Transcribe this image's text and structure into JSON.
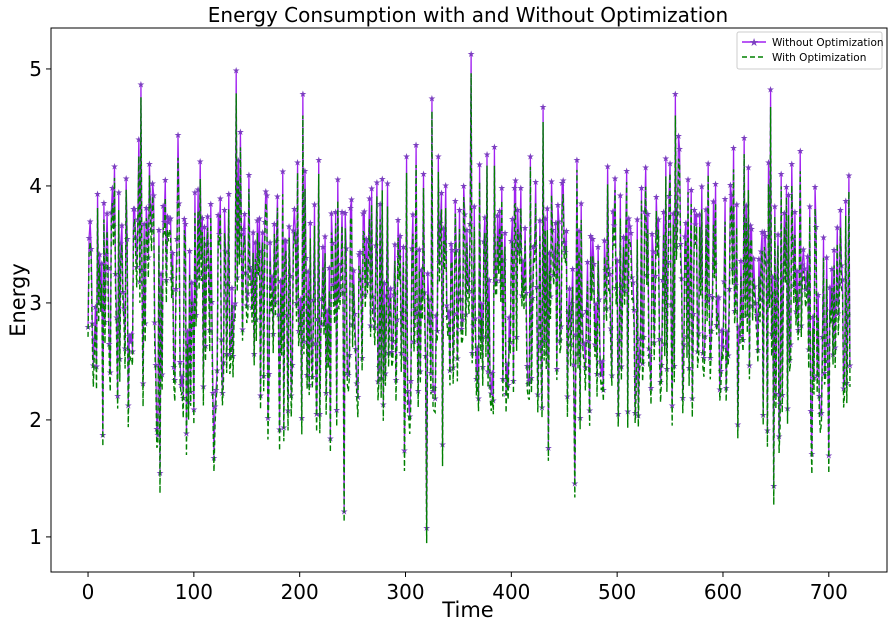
{
  "chart_data": {
    "type": "line",
    "title": "Energy Consumption with and Without Optimization",
    "xlabel": "Time",
    "ylabel": "Energy",
    "xlim": [
      -35,
      755
    ],
    "ylim": [
      0.7,
      5.35
    ],
    "xticks": [
      0,
      100,
      200,
      300,
      400,
      500,
      600,
      700
    ],
    "yticks": [
      1,
      2,
      3,
      4,
      5
    ],
    "grid": false,
    "legend_position": "top-right",
    "n_points": 721,
    "series": [
      {
        "name": "Without Optimization",
        "color": "#a020f0",
        "marker_color": "#7b3fbf",
        "linestyle": "solid",
        "marker": "star",
        "values_note_x": [
          0,
          10,
          18,
          25,
          48,
          50,
          68,
          85,
          119,
          140,
          176,
          203,
          242,
          320,
          325,
          362,
          430,
          460,
          555,
          645,
          648,
          700,
          720
        ],
        "values": [
          2.8,
          3.0,
          3.77,
          4.17,
          4.4,
          4.87,
          1.55,
          4.44,
          1.68,
          4.99,
          3.68,
          4.79,
          1.22,
          1.08,
          4.75,
          5.13,
          4.68,
          1.46,
          4.79,
          4.83,
          1.44,
          1.7,
          2.47
        ]
      },
      {
        "name": "With Optimization",
        "color": "#008000",
        "linestyle": "dashed",
        "offset_below_primary": 0.15
      }
    ]
  }
}
